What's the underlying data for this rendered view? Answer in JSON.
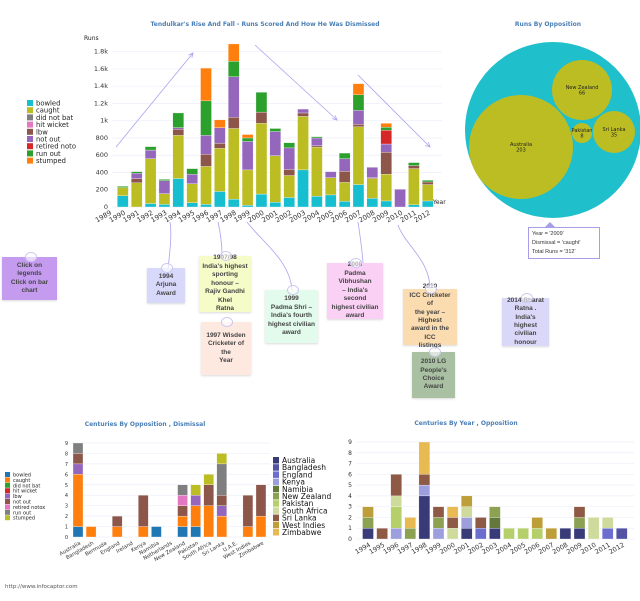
{
  "footer": "http://www.infocaptor.com",
  "colors": {
    "dismissal_main": {
      "bowled": "#17becf",
      "caught": "#bcbd22",
      "did not bat": "#7f7f7f",
      "hit wicket": "#e377c2",
      "lbw": "#8c564b",
      "not out": "#9467bd",
      "retired noto": "#d62728",
      "run out": "#2ca02c",
      "stumped": "#ff7f0e"
    },
    "dismissal_centuries": {
      "bowled": "#1f77b4",
      "caught": "#ff7f0e",
      "did not bat": "#2ca02c",
      "hit wicket": "#d62728",
      "lbw": "#9467bd",
      "not out": "#8c564b",
      "retired notox": "#e377c2",
      "run out": "#7f7f7f",
      "stumped": "#bcbd22"
    },
    "opposition": {
      "Australia": "#393b79",
      "Bangladesh": "#5254a3",
      "England": "#6b6ecf",
      "Kenya": "#9c9ede",
      "Namibia": "#637939",
      "New Zealand": "#8ca252",
      "Pakistan": "#b5cf6b",
      "South Africa": "#cedb9c",
      "Sri Lanka": "#8f5a45",
      "West Indies": "#bd9e39",
      "Zimbabwe": "#e7ba52"
    },
    "bubble_outer": "#1fbfcc",
    "bubble_inner": "#bcbd22",
    "title": "#4a7fb5",
    "arrow": "#a9a3ec"
  },
  "chart_data": [
    {
      "type": "bar",
      "stacked": true,
      "title": "Tendulkar's Rise And Fall - Runs Scored And How He Was Dismissed",
      "xlabel": "Year",
      "ylabel": "Runs",
      "ylim": [
        0,
        1900
      ],
      "yticks": [
        "0",
        "200",
        "400",
        "600",
        "800",
        "1k",
        "1.2k",
        "1.4k",
        "1.6k",
        "1.8k"
      ],
      "grid": true,
      "legend": "left",
      "categories": [
        "1989",
        "1990",
        "1991",
        "1992",
        "1993",
        "1994",
        "1995",
        "1996",
        "1997",
        "1998",
        "1999",
        "2000",
        "2001",
        "2002",
        "2003",
        "2004",
        "2005",
        "2006",
        "2007",
        "2008",
        "2009",
        "2010",
        "2011",
        "2012"
      ],
      "series": [
        {
          "name": "bowled",
          "values": [
            0,
            130,
            0,
            40,
            30,
            330,
            50,
            30,
            180,
            90,
            20,
            150,
            55,
            110,
            430,
            125,
            140,
            65,
            260,
            100,
            70,
            0,
            25,
            70
          ]
        },
        {
          "name": "caught",
          "values": [
            0,
            95,
            280,
            520,
            125,
            500,
            220,
            440,
            500,
            820,
            410,
            820,
            540,
            255,
            620,
            570,
            200,
            220,
            670,
            230,
            310,
            0,
            420,
            190
          ]
        },
        {
          "name": "did not bat",
          "values": [
            0,
            0,
            0,
            0,
            0,
            0,
            0,
            0,
            0,
            0,
            0,
            0,
            0,
            0,
            0,
            0,
            0,
            0,
            0,
            0,
            0,
            0,
            0,
            0
          ]
        },
        {
          "name": "hit wicket",
          "values": [
            0,
            0,
            0,
            0,
            0,
            0,
            0,
            0,
            0,
            0,
            0,
            0,
            0,
            0,
            0,
            0,
            0,
            0,
            0,
            0,
            0,
            0,
            0,
            0
          ]
        },
        {
          "name": "lbw",
          "values": [
            0,
            0,
            50,
            0,
            0,
            70,
            0,
            140,
            60,
            130,
            0,
            130,
            0,
            70,
            40,
            15,
            0,
            130,
            30,
            10,
            255,
            0,
            35,
            30
          ]
        },
        {
          "name": "not out",
          "values": [
            0,
            0,
            60,
            100,
            150,
            20,
            110,
            220,
            180,
            470,
            330,
            0,
            280,
            250,
            45,
            90,
            70,
            145,
            160,
            120,
            95,
            205,
            0,
            0
          ]
        },
        {
          "name": "retired noto",
          "values": [
            0,
            0,
            0,
            0,
            0,
            0,
            0,
            0,
            0,
            0,
            0,
            0,
            0,
            0,
            0,
            0,
            0,
            0,
            0,
            0,
            160,
            0,
            0,
            0
          ]
        },
        {
          "name": "run out",
          "values": [
            0,
            15,
            20,
            40,
            15,
            170,
            65,
            400,
            0,
            180,
            40,
            230,
            35,
            60,
            0,
            15,
            0,
            65,
            180,
            0,
            35,
            0,
            35,
            20
          ]
        },
        {
          "name": "stumped",
          "values": [
            0,
            0,
            0,
            0,
            0,
            0,
            0,
            380,
            90,
            200,
            40,
            0,
            0,
            0,
            0,
            0,
            0,
            0,
            130,
            0,
            45,
            0,
            0,
            0
          ]
        }
      ]
    },
    {
      "type": "bubble",
      "title": "Runs By Opposition",
      "bubbles": [
        {
          "label": "Australia",
          "value": 203
        },
        {
          "label": "New Zealand",
          "value": 66
        },
        {
          "label": "Pakistan",
          "value": 8
        },
        {
          "label": "Sri Lanka",
          "value": 35
        }
      ],
      "tooltip": [
        "Year = '2009'",
        "Dismissal = 'caught'",
        "Total Runs = '312'"
      ]
    },
    {
      "type": "bar",
      "stacked": true,
      "title": "Centuries By Opposition , Dismissal",
      "ylim": [
        0,
        9
      ],
      "yticks": [
        "0",
        "1",
        "2",
        "3",
        "4",
        "5",
        "6",
        "7",
        "8",
        "9"
      ],
      "grid": true,
      "legend": "left",
      "categories": [
        "Australia",
        "Bangladesh",
        "Bermuda",
        "England",
        "Ireland",
        "Kenya",
        "Namibia",
        "Netherlands",
        "New Zealand",
        "Pakistan",
        "South Africa",
        "Sri Lanka",
        "U.A.E.",
        "West Indies",
        "Zimbabwe"
      ],
      "series": [
        {
          "name": "bowled",
          "values": [
            1,
            0,
            0,
            0,
            0,
            0,
            1,
            0,
            1,
            1,
            0,
            0,
            0,
            0,
            0
          ]
        },
        {
          "name": "caught",
          "values": [
            5,
            1,
            0,
            1,
            0,
            1,
            0,
            0,
            1,
            2,
            3,
            2,
            0,
            1,
            2
          ]
        },
        {
          "name": "did not bat",
          "values": [
            0,
            0,
            0,
            0,
            0,
            0,
            0,
            0,
            0,
            0,
            0,
            0,
            0,
            0,
            0
          ]
        },
        {
          "name": "hit wicket",
          "values": [
            0,
            0,
            0,
            0,
            0,
            0,
            0,
            0,
            0,
            0,
            0,
            0,
            0,
            0,
            0
          ]
        },
        {
          "name": "lbw",
          "values": [
            1,
            0,
            0,
            0,
            0,
            0,
            0,
            0,
            0,
            1,
            0,
            1,
            0,
            0,
            0
          ]
        },
        {
          "name": "not out",
          "values": [
            1,
            0,
            0,
            1,
            0,
            3,
            0,
            0,
            1,
            0,
            2,
            1,
            0,
            3,
            3
          ]
        },
        {
          "name": "retired notox",
          "values": [
            0,
            0,
            0,
            0,
            0,
            0,
            0,
            0,
            1,
            0,
            0,
            0,
            0,
            0,
            0
          ]
        },
        {
          "name": "run out",
          "values": [
            1,
            0,
            0,
            0,
            0,
            0,
            0,
            0,
            1,
            0,
            0,
            3,
            0,
            0,
            0
          ]
        },
        {
          "name": "stumped",
          "values": [
            0,
            0,
            0,
            0,
            0,
            0,
            0,
            0,
            0,
            1,
            1,
            1,
            0,
            0,
            0
          ]
        }
      ]
    },
    {
      "type": "bar",
      "stacked": true,
      "title": "Centuries By Year , Opposition",
      "ylim": [
        0,
        9
      ],
      "yticks": [
        "0",
        "1",
        "2",
        "3",
        "4",
        "5",
        "6",
        "7",
        "8",
        "9"
      ],
      "grid": true,
      "legend": "left",
      "categories": [
        "1994",
        "1995",
        "1996",
        "1997",
        "1998",
        "1999",
        "2000",
        "2001",
        "2002",
        "2003",
        "2004",
        "2005",
        "2006",
        "2007",
        "2008",
        "2009",
        "2010",
        "2011",
        "2012"
      ],
      "series": [
        {
          "name": "Australia",
          "values": [
            1,
            0,
            0,
            0,
            4,
            0,
            0,
            1,
            0,
            1,
            0,
            0,
            0,
            0,
            1,
            1,
            0,
            0,
            0
          ]
        },
        {
          "name": "Bangladesh",
          "values": [
            0,
            0,
            0,
            0,
            0,
            0,
            0,
            0,
            0,
            0,
            0,
            0,
            0,
            0,
            0,
            0,
            0,
            0,
            1
          ]
        },
        {
          "name": "England",
          "values": [
            0,
            0,
            0,
            0,
            0,
            0,
            0,
            0,
            1,
            0,
            0,
            0,
            0,
            0,
            0,
            0,
            0,
            1,
            0
          ]
        },
        {
          "name": "Kenya",
          "values": [
            0,
            0,
            1,
            0,
            1,
            1,
            0,
            1,
            0,
            0,
            0,
            0,
            0,
            0,
            0,
            0,
            0,
            0,
            0
          ]
        },
        {
          "name": "Namibia",
          "values": [
            0,
            0,
            0,
            0,
            0,
            0,
            0,
            0,
            0,
            1,
            0,
            0,
            0,
            0,
            0,
            0,
            0,
            0,
            0
          ]
        },
        {
          "name": "New Zealand",
          "values": [
            1,
            0,
            0,
            1,
            0,
            1,
            0,
            0,
            0,
            1,
            0,
            0,
            0,
            0,
            0,
            1,
            0,
            0,
            0
          ]
        },
        {
          "name": "Pakistan",
          "values": [
            0,
            0,
            2,
            0,
            0,
            0,
            0,
            0,
            0,
            0,
            1,
            1,
            1,
            0,
            0,
            0,
            0,
            0,
            0
          ]
        },
        {
          "name": "South Africa",
          "values": [
            0,
            0,
            1,
            0,
            0,
            0,
            1,
            1,
            0,
            0,
            0,
            0,
            0,
            0,
            0,
            0,
            2,
            1,
            0
          ]
        },
        {
          "name": "Sri Lanka",
          "values": [
            0,
            1,
            2,
            0,
            1,
            1,
            1,
            0,
            1,
            0,
            0,
            0,
            0,
            0,
            0,
            1,
            0,
            0,
            0
          ]
        },
        {
          "name": "West Indies",
          "values": [
            1,
            0,
            0,
            0,
            0,
            0,
            0,
            1,
            0,
            0,
            0,
            0,
            1,
            1,
            0,
            0,
            0,
            0,
            0
          ]
        },
        {
          "name": "Zimbabwe",
          "values": [
            0,
            0,
            0,
            1,
            3,
            0,
            1,
            0,
            0,
            0,
            0,
            0,
            0,
            0,
            0,
            0,
            0,
            0,
            0
          ]
        }
      ]
    }
  ],
  "notes": [
    {
      "text": "Click on legends\nClick on bar chart",
      "color": "#c59bf0"
    },
    {
      "text": "1994 Arjuna\nAward",
      "color": "#d8d8fa"
    },
    {
      "text": "1997/98\nIndia's highest\nsporting honour –\nRajiv Gandhi Khel\nRatna",
      "color": "#f5fcc8"
    },
    {
      "text": "1997 Wisden\nCricketer of the\nYear",
      "color": "#fde9e0"
    },
    {
      "text": "1999\nPadma Shri –\nIndia's fourth\nhighest civilian\naward",
      "color": "#e2fbec"
    },
    {
      "text": "2008\nPadma Vibhushan\n– India's second\nhighest civilian\naward",
      "color": "#fbd0f5"
    },
    {
      "text": "2010\nICC Cricketer of\nthe year – Highest\naward in the ICC\nlistings",
      "color": "#fbdcb0"
    },
    {
      "text": "2010 LG\nPeople's\nChoice Award",
      "color": "#a9c1a2"
    },
    {
      "text": "2014 Bharat\nRatna . India's\nhighest civilian\nhonour",
      "color": "#d9d8f8"
    }
  ]
}
